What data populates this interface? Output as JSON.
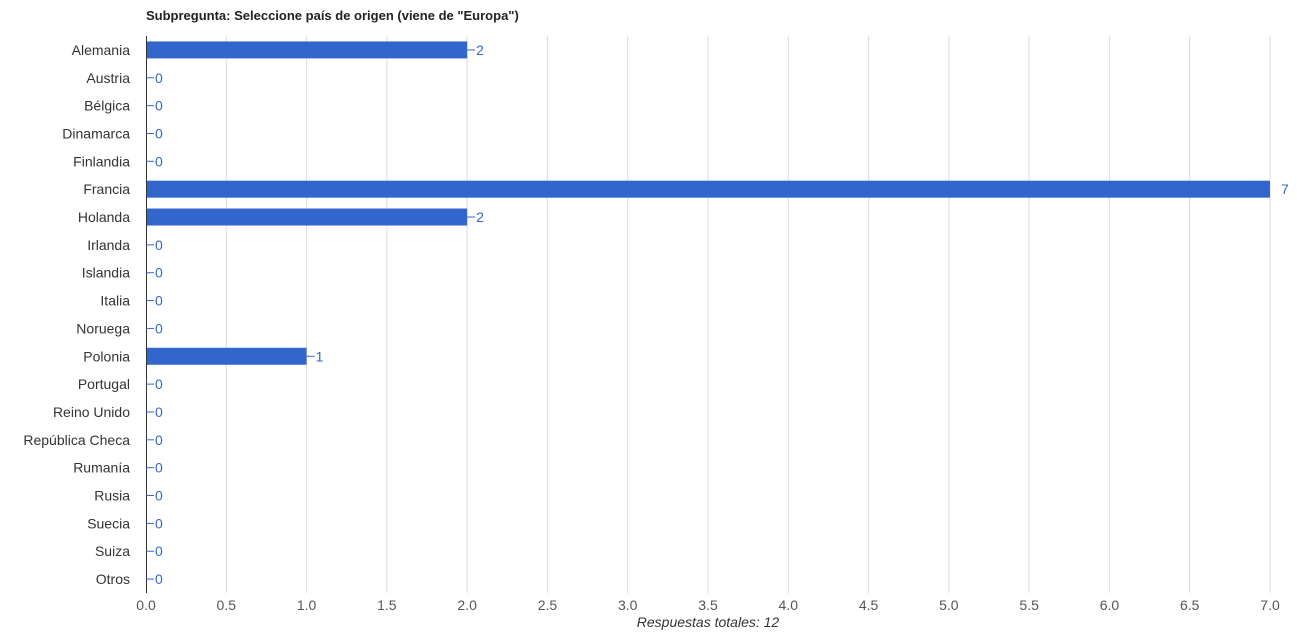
{
  "chart_data": {
    "type": "bar",
    "orientation": "horizontal",
    "title": "Subpregunta: Seleccione país de origen (viene de \"Europa\")",
    "xlabel": "Respuestas totales: 12",
    "ylabel": "",
    "categories": [
      "Alemania",
      "Austria",
      "Bélgica",
      "Dinamarca",
      "Finlandia",
      "Francia",
      "Holanda",
      "Irlanda",
      "Islandia",
      "Italia",
      "Noruega",
      "Polonia",
      "Portugal",
      "Reino Unido",
      "República Checa",
      "Rumanía",
      "Rusia",
      "Suecia",
      "Suiza",
      "Otros"
    ],
    "values": [
      2,
      0,
      0,
      0,
      0,
      7,
      2,
      0,
      0,
      0,
      0,
      1,
      0,
      0,
      0,
      0,
      0,
      0,
      0,
      0
    ],
    "xlim": [
      0,
      7
    ],
    "xticks": [
      "0.0",
      "0.5",
      "1.0",
      "1.5",
      "2.0",
      "2.5",
      "3.0",
      "3.5",
      "4.0",
      "4.5",
      "5.0",
      "5.5",
      "6.0",
      "6.5",
      "7.0"
    ],
    "grid": true,
    "legend": "none",
    "colors": {
      "bar": "#3366cc",
      "value_label": "#3366cc",
      "grid": "#dddddd",
      "axis": "#333333"
    }
  }
}
